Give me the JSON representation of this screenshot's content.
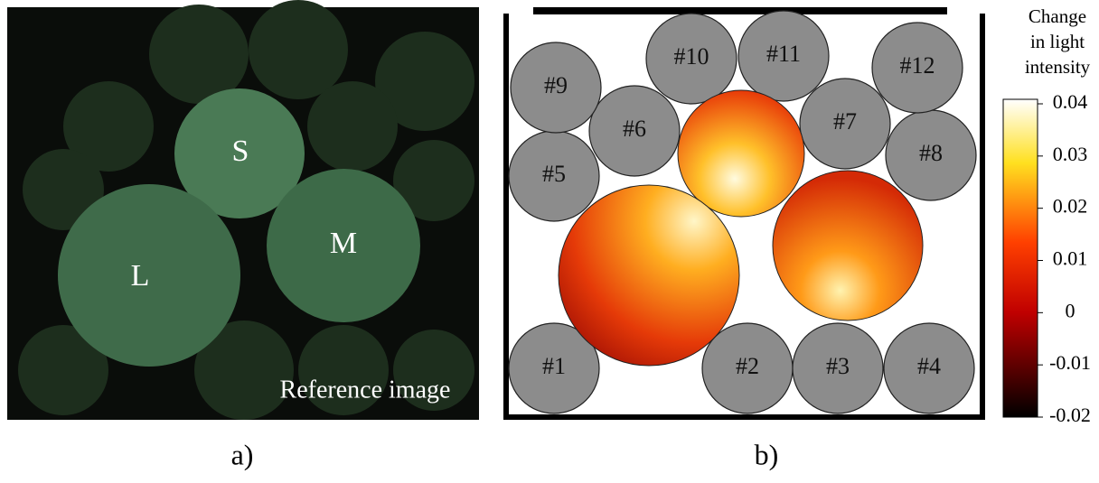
{
  "panel_a": {
    "label": "a)",
    "particles": [
      "S",
      "M",
      "L"
    ],
    "caption": "Reference image"
  },
  "panel_b": {
    "label": "b)",
    "disks": [
      "#1",
      "#2",
      "#3",
      "#4",
      "#5",
      "#6",
      "#7",
      "#8",
      "#9",
      "#10",
      "#11",
      "#12"
    ],
    "colorbar": {
      "title": [
        "Change",
        "in light",
        "intensity"
      ],
      "lim": [
        -0.02,
        0.04
      ],
      "ticks": [
        -0.02,
        -0.01,
        0,
        0.01,
        0.02,
        0.03,
        0.04
      ]
    }
  }
}
